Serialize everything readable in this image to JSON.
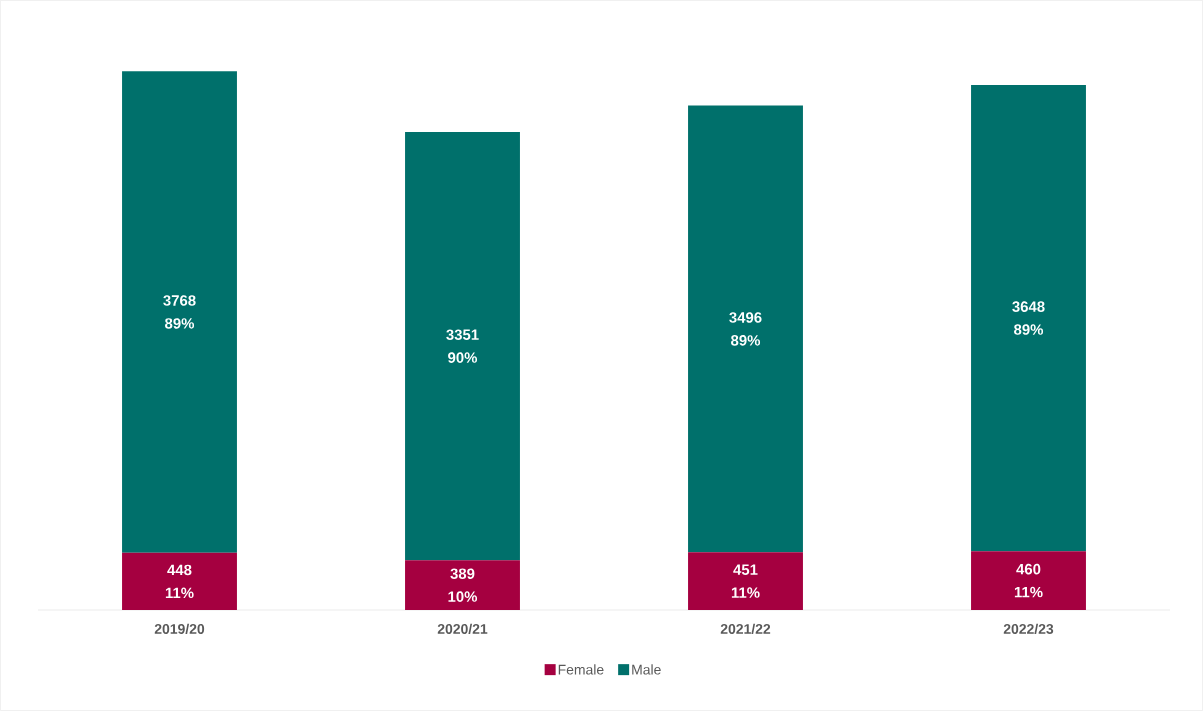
{
  "chart_data": {
    "type": "bar",
    "stacked": true,
    "categories": [
      "2019/20",
      "2020/21",
      "2021/22",
      "2022/23"
    ],
    "series": [
      {
        "name": "Female",
        "color": "#a50040",
        "values": [
          448,
          389,
          451,
          460
        ],
        "value_labels": [
          "448 11%",
          "389 10%",
          "451 11%",
          "460 11%"
        ]
      },
      {
        "name": "Male",
        "color": "#00706b",
        "values": [
          3768,
          3351,
          3496,
          3648
        ],
        "value_labels": [
          "3768 89%",
          "3351 90%",
          "3496 89%",
          "3648 89%"
        ]
      }
    ],
    "legend": "bottom"
  }
}
